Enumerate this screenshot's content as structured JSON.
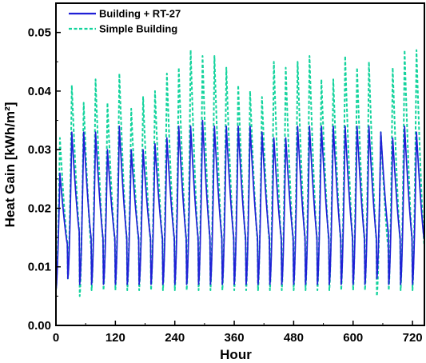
{
  "chart_data": {
    "type": "line",
    "title": "",
    "xlabel": "Hour",
    "ylabel": "Heat Gain [kWh/m²]",
    "xlim": [
      0,
      744
    ],
    "ylim": [
      0,
      0.055
    ],
    "xticks": [
      0,
      120,
      240,
      360,
      480,
      600,
      720
    ],
    "yticks": [
      0.0,
      0.01,
      0.02,
      0.03,
      0.04,
      0.05
    ],
    "ytick_labels": [
      "0.00",
      "0.01",
      "0.02",
      "0.03",
      "0.04",
      "0.05"
    ],
    "grid": false,
    "legend_position": "top-left",
    "days": 31,
    "hours_per_day": 24,
    "daily_shape": "sharp rise from the daily minimum to the peak, then decay back toward the minimum",
    "series": [
      {
        "name": "Building + RT-27",
        "color": "#1f1fd6",
        "style": "solid",
        "daily_peaks": [
          0.026,
          0.033,
          0.033,
          0.033,
          0.03,
          0.034,
          0.03,
          0.03,
          0.031,
          0.032,
          0.034,
          0.034,
          0.035,
          0.034,
          0.034,
          0.034,
          0.034,
          0.033,
          0.032,
          0.032,
          0.034,
          0.034,
          0.034,
          0.034,
          0.034,
          0.034,
          0.034,
          0.033,
          0.032,
          0.034,
          0.033
        ],
        "daily_mins": [
          0.006,
          0.008,
          0.007,
          0.007,
          0.007,
          0.007,
          0.007,
          0.007,
          0.007,
          0.007,
          0.007,
          0.007,
          0.007,
          0.007,
          0.007,
          0.007,
          0.007,
          0.007,
          0.007,
          0.007,
          0.007,
          0.007,
          0.007,
          0.007,
          0.007,
          0.007,
          0.007,
          0.008,
          0.007,
          0.007,
          0.007
        ]
      },
      {
        "name": "Simple Building",
        "color": "#12d39c",
        "style": "dashed",
        "daily_peaks": [
          0.032,
          0.041,
          0.038,
          0.042,
          0.038,
          0.043,
          0.037,
          0.039,
          0.04,
          0.043,
          0.044,
          0.047,
          0.046,
          0.046,
          0.044,
          0.041,
          0.04,
          0.039,
          0.045,
          0.044,
          0.045,
          0.046,
          0.042,
          0.042,
          0.046,
          0.044,
          0.045,
          0.033,
          0.044,
          0.047,
          0.047
        ],
        "daily_mins": [
          0.006,
          0.008,
          0.005,
          0.006,
          0.006,
          0.006,
          0.006,
          0.006,
          0.006,
          0.006,
          0.006,
          0.006,
          0.006,
          0.006,
          0.006,
          0.006,
          0.006,
          0.006,
          0.006,
          0.006,
          0.006,
          0.006,
          0.006,
          0.006,
          0.006,
          0.006,
          0.006,
          0.005,
          0.006,
          0.006,
          0.006
        ]
      }
    ]
  }
}
